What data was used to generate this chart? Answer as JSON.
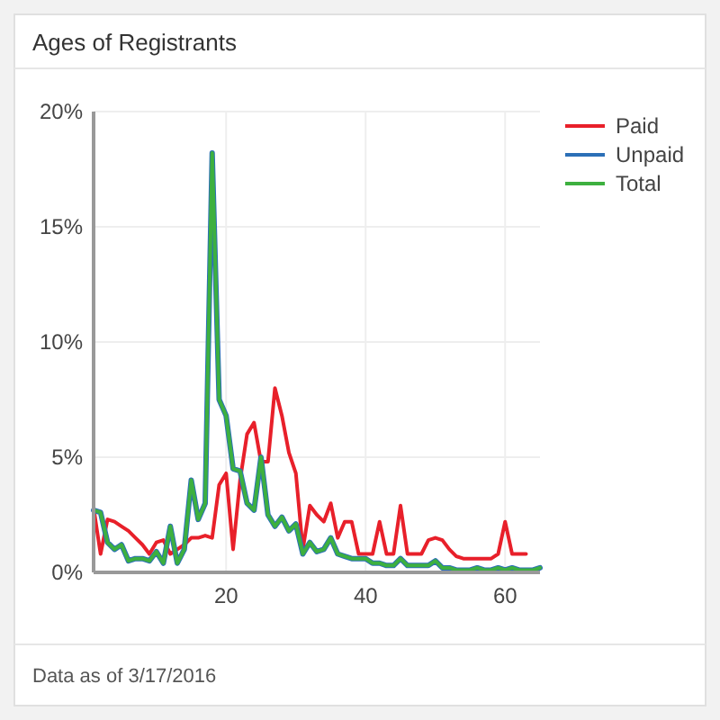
{
  "chart_data": {
    "type": "line",
    "title": "Ages of Registrants",
    "x": [
      1,
      2,
      3,
      4,
      5,
      6,
      7,
      8,
      9,
      10,
      11,
      12,
      13,
      14,
      15,
      16,
      17,
      18,
      19,
      20,
      21,
      22,
      23,
      24,
      25,
      26,
      27,
      28,
      29,
      30,
      31,
      32,
      33,
      34,
      35,
      36,
      37,
      38,
      39,
      40,
      41,
      42,
      43,
      44,
      45,
      46,
      47,
      48,
      49,
      50,
      51,
      52,
      53,
      54,
      55,
      56,
      57,
      58,
      59,
      60,
      61,
      62,
      63,
      64,
      65
    ],
    "series": [
      {
        "name": "Paid",
        "color": "#e8202a",
        "values": [
          2.8,
          0.8,
          2.3,
          2.2,
          2.0,
          1.8,
          1.5,
          1.2,
          0.8,
          1.3,
          1.4,
          0.8,
          1.0,
          1.2,
          1.5,
          1.5,
          1.6,
          1.5,
          3.8,
          4.3,
          1.0,
          4.0,
          6.0,
          6.5,
          4.8,
          4.8,
          8.0,
          6.8,
          5.2,
          4.3,
          1.0,
          2.9,
          2.5,
          2.2,
          3.0,
          1.5,
          2.2,
          2.2,
          0.8,
          0.8,
          0.8,
          2.2,
          0.8,
          0.8,
          2.9,
          0.8,
          0.8,
          0.8,
          1.4,
          1.5,
          1.4,
          1.0,
          0.7,
          0.6,
          0.6,
          0.6,
          0.6,
          0.6,
          0.8,
          2.2,
          0.8,
          0.8,
          0.8,
          null,
          null
        ]
      },
      {
        "name": "Unpaid",
        "color": "#2c6fb7",
        "values": [
          2.7,
          2.6,
          1.3,
          1.0,
          1.2,
          0.5,
          0.6,
          0.6,
          0.5,
          0.9,
          0.4,
          2.0,
          0.4,
          1.0,
          4.0,
          2.3,
          3.0,
          18.2,
          7.5,
          6.8,
          4.5,
          4.4,
          3.0,
          2.7,
          5.0,
          2.5,
          2.0,
          2.4,
          1.8,
          2.1,
          0.8,
          1.3,
          0.9,
          1.0,
          1.5,
          0.8,
          0.7,
          0.6,
          0.6,
          0.6,
          0.4,
          0.4,
          0.3,
          0.3,
          0.6,
          0.3,
          0.3,
          0.3,
          0.3,
          0.5,
          0.2,
          0.2,
          0.1,
          0.1,
          0.1,
          0.2,
          0.1,
          0.1,
          0.2,
          0.1,
          0.2,
          0.1,
          0.1,
          0.1,
          0.2
        ]
      },
      {
        "name": "Total",
        "color": "#3db03f",
        "values": [
          2.7,
          2.6,
          1.3,
          1.0,
          1.2,
          0.5,
          0.6,
          0.6,
          0.5,
          0.9,
          0.4,
          2.0,
          0.4,
          1.0,
          4.0,
          2.3,
          3.0,
          18.2,
          7.5,
          6.8,
          4.5,
          4.4,
          3.0,
          2.7,
          5.0,
          2.5,
          2.0,
          2.4,
          1.8,
          2.1,
          0.8,
          1.3,
          0.9,
          1.0,
          1.5,
          0.8,
          0.7,
          0.6,
          0.6,
          0.6,
          0.4,
          0.4,
          0.3,
          0.3,
          0.6,
          0.3,
          0.3,
          0.3,
          0.3,
          0.5,
          0.2,
          0.2,
          0.1,
          0.1,
          0.1,
          0.2,
          0.1,
          0.1,
          0.2,
          0.1,
          0.2,
          0.1,
          0.1,
          0.1,
          0.2
        ]
      }
    ],
    "xlim": [
      1,
      65
    ],
    "xticks": [
      20,
      40,
      60
    ],
    "ylim": [
      0,
      20
    ],
    "yticks": [
      {
        "value": 0,
        "label": "0%"
      },
      {
        "value": 5,
        "label": "5%"
      },
      {
        "value": 10,
        "label": "10%"
      },
      {
        "value": 15,
        "label": "15%"
      },
      {
        "value": 20,
        "label": "20%"
      }
    ],
    "grid": true,
    "legend": "top right",
    "annotations": [
      "Data as of 3/17/2016"
    ]
  }
}
